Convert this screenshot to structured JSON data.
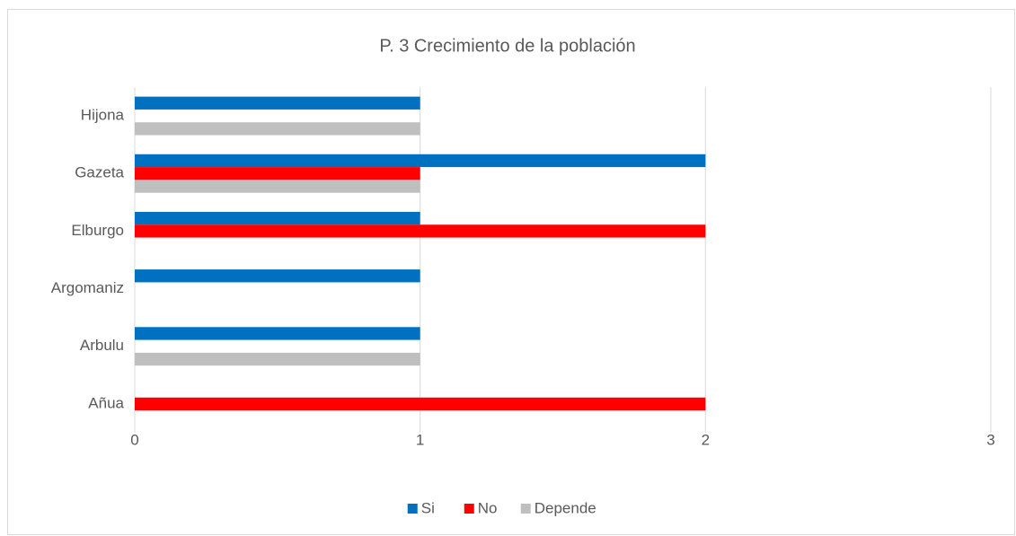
{
  "chart_data": {
    "type": "bar",
    "orientation": "horizontal",
    "title": "P. 3 Crecimiento de la población",
    "categories": [
      "Hijona",
      "Gazeta",
      "Elburgo",
      "Argomaniz",
      "Arbulu",
      "Añua"
    ],
    "series": [
      {
        "name": "Si",
        "color": "#0070c0",
        "values": [
          1,
          2,
          1,
          1,
          1,
          0
        ]
      },
      {
        "name": "No",
        "color": "#ff0000",
        "values": [
          0,
          1,
          2,
          0,
          0,
          2
        ]
      },
      {
        "name": "Depende",
        "color": "#bfbfbf",
        "values": [
          1,
          1,
          0,
          0,
          1,
          0
        ]
      }
    ],
    "xlim": [
      0,
      3
    ],
    "xticks": [
      0,
      1,
      2,
      3
    ],
    "grid": true,
    "legend": "bottom"
  }
}
